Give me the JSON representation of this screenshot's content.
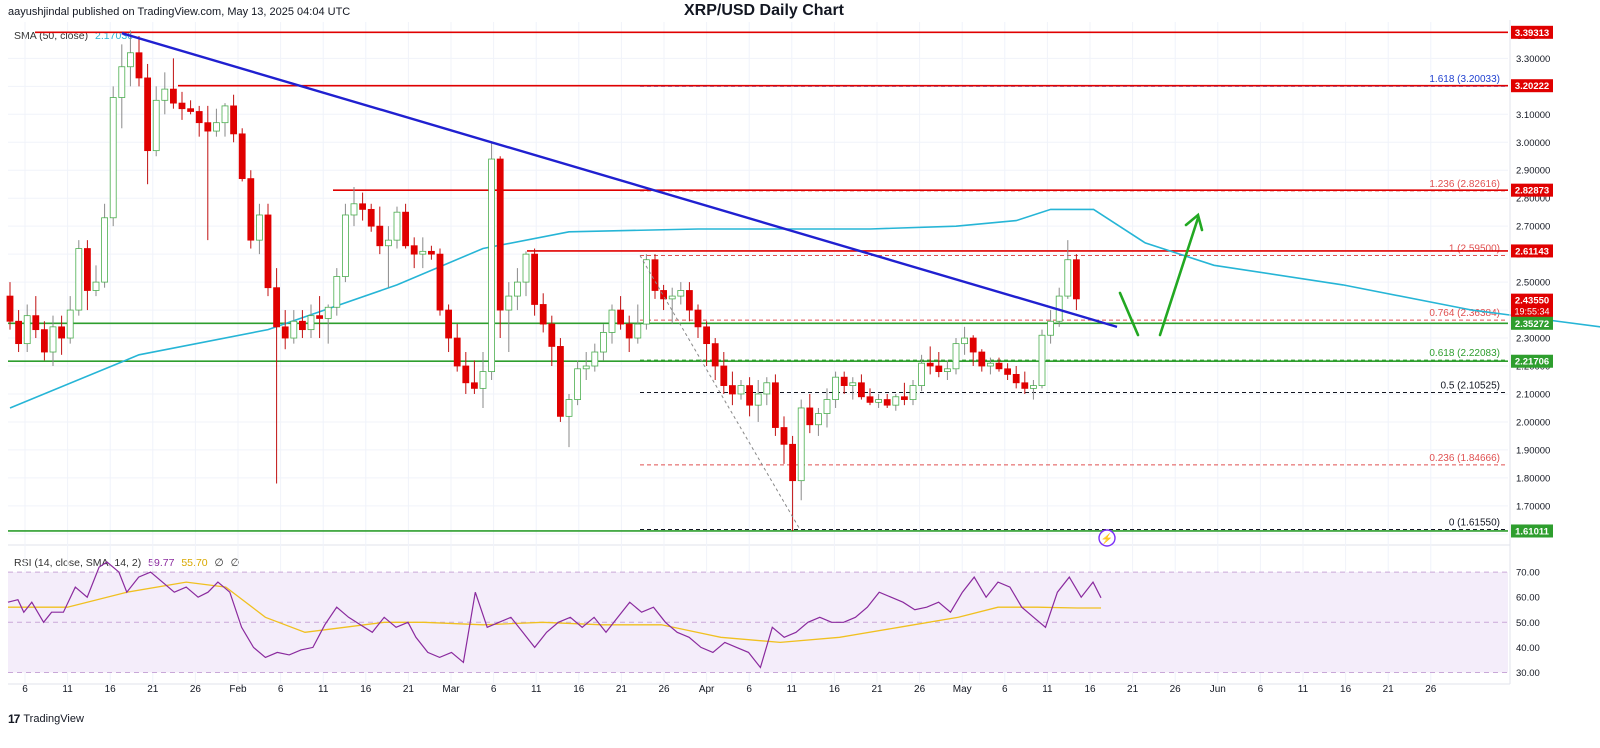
{
  "header": {
    "published": "aayushjindal published on TradingView.com, May 13, 2025 04:04 UTC",
    "title": "XRP/USD Daily Chart",
    "currency": "USD"
  },
  "indicators": {
    "sma_label": "SMA (50, close)",
    "sma_value": "2.17036",
    "rsi_label": "RSI (14, close, SMA, 14, 2)",
    "rsi_value": "59.77",
    "rsi_sma_value": "55.70",
    "rsi_extra1": "∅",
    "rsi_extra2": "∅"
  },
  "footer": {
    "brand": "TradingView",
    "logo": "17"
  },
  "colors": {
    "up": "#ffffff",
    "up_border": "#4caf50",
    "down": "#e00000",
    "sma": "#26b5d6",
    "trendline": "#2020d0",
    "resistance": "#e00000",
    "support": "#2e9e2e",
    "fib": "#e05050",
    "rsi": "#8a2a9e",
    "rsi_sma": "#f0c020",
    "arrow": "#22a822"
  },
  "chart_data": {
    "type": "candlestick",
    "title": "XRP/USD Daily Chart",
    "y_ticks": [
      "3.30000",
      "3.20000",
      "3.10000",
      "3.00000",
      "2.90000",
      "2.80000",
      "2.70000",
      "2.60000",
      "2.50000",
      "2.40000",
      "2.30000",
      "2.20000",
      "2.10000",
      "2.00000",
      "1.90000",
      "1.80000",
      "1.70000",
      "1.60000"
    ],
    "ylim": [
      1.56,
      3.43
    ],
    "x_ticks": [
      "6",
      "11",
      "16",
      "21",
      "26",
      "Feb",
      "6",
      "11",
      "16",
      "21",
      "Mar",
      "6",
      "11",
      "16",
      "21",
      "26",
      "Apr",
      "6",
      "11",
      "16",
      "21",
      "26",
      "May",
      "6",
      "11",
      "16",
      "21",
      "26",
      "Jun",
      "6",
      "11",
      "16",
      "21",
      "26"
    ],
    "price_labels": [
      {
        "value": 3.39313,
        "text": "3.39313",
        "color": "#e00000"
      },
      {
        "value": 3.20222,
        "text": "3.20222",
        "color": "#e00000"
      },
      {
        "value": 2.82873,
        "text": "2.82873",
        "color": "#e00000"
      },
      {
        "value": 2.61143,
        "text": "2.61143",
        "color": "#e00000"
      },
      {
        "value": 2.4355,
        "text": "2.43550",
        "sub": "19:55:34",
        "color": "#e00000"
      },
      {
        "value": 2.35272,
        "text": "2.35272",
        "color": "#2e9e2e"
      },
      {
        "value": 2.21706,
        "text": "2.21706",
        "color": "#2e9e2e"
      },
      {
        "value": 1.61011,
        "text": "1.61011",
        "color": "#2e9e2e"
      }
    ],
    "fib_levels": [
      {
        "ratio": "1.618",
        "price": "3.20033",
        "value": 3.20033,
        "color": "#1e3fd0",
        "label": "1.618 (3.20033)"
      },
      {
        "ratio": "1.236",
        "price": "2.82616",
        "value": 2.82616,
        "color": "#e05050",
        "label": "1.236 (2.82616)"
      },
      {
        "ratio": "1",
        "price": "2.59500",
        "value": 2.595,
        "color": "#e05050",
        "label": "1 (2.59500)"
      },
      {
        "ratio": "0.764",
        "price": "2.36384",
        "value": 2.36384,
        "color": "#e05050",
        "label": "0.764 (2.36384)"
      },
      {
        "ratio": "0.618",
        "price": "2.22083",
        "value": 2.22083,
        "color": "#2e9e2e",
        "label": "0.618 (2.22083)"
      },
      {
        "ratio": "0.5",
        "price": "2.10525",
        "value": 2.10525,
        "color": "#131722",
        "label": "0.5 (2.10525)"
      },
      {
        "ratio": "0.236",
        "price": "1.84666",
        "value": 1.84666,
        "color": "#e05050",
        "label": "0.236 (1.84666)"
      },
      {
        "ratio": "0",
        "price": "1.61550",
        "value": 1.6155,
        "color": "#131722",
        "label": "0 (1.61550)"
      }
    ],
    "candles": [
      [
        2.45,
        2.5,
        2.33,
        2.36
      ],
      [
        2.36,
        2.4,
        2.25,
        2.28
      ],
      [
        2.28,
        2.42,
        2.25,
        2.38
      ],
      [
        2.38,
        2.45,
        2.3,
        2.33
      ],
      [
        2.33,
        2.36,
        2.22,
        2.25
      ],
      [
        2.25,
        2.38,
        2.2,
        2.34
      ],
      [
        2.34,
        2.38,
        2.24,
        2.3
      ],
      [
        2.3,
        2.45,
        2.28,
        2.4
      ],
      [
        2.4,
        2.65,
        2.38,
        2.62
      ],
      [
        2.62,
        2.65,
        2.4,
        2.47
      ],
      [
        2.47,
        2.56,
        2.45,
        2.5
      ],
      [
        2.5,
        2.78,
        2.48,
        2.73
      ],
      [
        2.73,
        3.2,
        2.7,
        3.16
      ],
      [
        3.16,
        3.35,
        3.05,
        3.27
      ],
      [
        3.27,
        3.4,
        3.2,
        3.32
      ],
      [
        3.32,
        3.38,
        3.2,
        3.23
      ],
      [
        3.23,
        3.28,
        2.85,
        2.97
      ],
      [
        2.97,
        3.2,
        2.95,
        3.15
      ],
      [
        3.15,
        3.25,
        3.1,
        3.19
      ],
      [
        3.19,
        3.3,
        3.12,
        3.14
      ],
      [
        3.14,
        3.18,
        3.08,
        3.12
      ],
      [
        3.12,
        3.15,
        3.1,
        3.11
      ],
      [
        3.11,
        3.13,
        3.02,
        3.07
      ],
      [
        3.07,
        3.13,
        2.65,
        3.04
      ],
      [
        3.04,
        3.12,
        3.02,
        3.07
      ],
      [
        3.07,
        3.14,
        3.02,
        3.13
      ],
      [
        3.13,
        3.17,
        3.0,
        3.03
      ],
      [
        3.03,
        3.05,
        2.86,
        2.87
      ],
      [
        2.87,
        2.9,
        2.62,
        2.65
      ],
      [
        2.65,
        2.78,
        2.6,
        2.74
      ],
      [
        2.74,
        2.78,
        2.45,
        2.48
      ],
      [
        2.48,
        2.55,
        1.78,
        2.34
      ],
      [
        2.34,
        2.4,
        2.26,
        2.3
      ],
      [
        2.3,
        2.4,
        2.28,
        2.36
      ],
      [
        2.36,
        2.4,
        2.3,
        2.33
      ],
      [
        2.33,
        2.42,
        2.3,
        2.38
      ],
      [
        2.38,
        2.45,
        2.3,
        2.37
      ],
      [
        2.37,
        2.42,
        2.28,
        2.41
      ],
      [
        2.41,
        2.55,
        2.38,
        2.52
      ],
      [
        2.52,
        2.78,
        2.5,
        2.74
      ],
      [
        2.74,
        2.84,
        2.7,
        2.78
      ],
      [
        2.78,
        2.82,
        2.72,
        2.76
      ],
      [
        2.76,
        2.78,
        2.68,
        2.7
      ],
      [
        2.7,
        2.77,
        2.6,
        2.63
      ],
      [
        2.63,
        2.7,
        2.48,
        2.65
      ],
      [
        2.65,
        2.77,
        2.62,
        2.75
      ],
      [
        2.75,
        2.78,
        2.62,
        2.63
      ],
      [
        2.63,
        2.66,
        2.55,
        2.6
      ],
      [
        2.6,
        2.66,
        2.55,
        2.61
      ],
      [
        2.61,
        2.63,
        2.58,
        2.6
      ],
      [
        2.6,
        2.62,
        2.38,
        2.4
      ],
      [
        2.4,
        2.42,
        2.25,
        2.3
      ],
      [
        2.3,
        2.35,
        2.18,
        2.2
      ],
      [
        2.2,
        2.25,
        2.1,
        2.14
      ],
      [
        2.14,
        2.22,
        2.1,
        2.12
      ],
      [
        2.12,
        2.25,
        2.05,
        2.18
      ],
      [
        2.18,
        3.0,
        2.15,
        2.94
      ],
      [
        2.94,
        2.95,
        2.3,
        2.4
      ],
      [
        2.4,
        2.5,
        2.25,
        2.45
      ],
      [
        2.45,
        2.55,
        2.4,
        2.5
      ],
      [
        2.5,
        2.61,
        2.45,
        2.6
      ],
      [
        2.6,
        2.62,
        2.38,
        2.42
      ],
      [
        2.42,
        2.46,
        2.32,
        2.35
      ],
      [
        2.35,
        2.38,
        2.2,
        2.27
      ],
      [
        2.27,
        2.3,
        2.0,
        2.02
      ],
      [
        2.02,
        2.1,
        1.91,
        2.08
      ],
      [
        2.08,
        2.22,
        2.06,
        2.19
      ],
      [
        2.19,
        2.25,
        2.15,
        2.2
      ],
      [
        2.2,
        2.28,
        2.18,
        2.25
      ],
      [
        2.25,
        2.35,
        2.22,
        2.32
      ],
      [
        2.32,
        2.42,
        2.28,
        2.4
      ],
      [
        2.4,
        2.45,
        2.33,
        2.35
      ],
      [
        2.35,
        2.38,
        2.25,
        2.3
      ],
      [
        2.3,
        2.42,
        2.28,
        2.35
      ],
      [
        2.35,
        2.6,
        2.33,
        2.58
      ],
      [
        2.58,
        2.6,
        2.44,
        2.47
      ],
      [
        2.47,
        2.49,
        2.4,
        2.44
      ],
      [
        2.44,
        2.48,
        2.35,
        2.45
      ],
      [
        2.45,
        2.5,
        2.42,
        2.47
      ],
      [
        2.47,
        2.5,
        2.36,
        2.4
      ],
      [
        2.4,
        2.42,
        2.3,
        2.34
      ],
      [
        2.34,
        2.36,
        2.2,
        2.28
      ],
      [
        2.28,
        2.3,
        2.15,
        2.2
      ],
      [
        2.2,
        2.25,
        2.1,
        2.13
      ],
      [
        2.13,
        2.18,
        2.06,
        2.1
      ],
      [
        2.1,
        2.15,
        2.08,
        2.13
      ],
      [
        2.13,
        2.16,
        2.02,
        2.06
      ],
      [
        2.06,
        2.15,
        2.0,
        2.1
      ],
      [
        2.1,
        2.16,
        2.06,
        2.14
      ],
      [
        2.14,
        2.17,
        1.95,
        1.98
      ],
      [
        1.98,
        2.02,
        1.85,
        1.92
      ],
      [
        1.92,
        1.95,
        1.61,
        1.79
      ],
      [
        1.79,
        2.08,
        1.72,
        2.05
      ],
      [
        2.05,
        2.1,
        1.96,
        1.99
      ],
      [
        1.99,
        2.05,
        1.95,
        2.03
      ],
      [
        2.03,
        2.12,
        1.98,
        2.08
      ],
      [
        2.08,
        2.18,
        2.05,
        2.16
      ],
      [
        2.16,
        2.18,
        2.1,
        2.13
      ],
      [
        2.13,
        2.16,
        2.08,
        2.14
      ],
      [
        2.14,
        2.17,
        2.08,
        2.09
      ],
      [
        2.09,
        2.12,
        2.06,
        2.07
      ],
      [
        2.07,
        2.1,
        2.05,
        2.08
      ],
      [
        2.08,
        2.1,
        2.05,
        2.06
      ],
      [
        2.06,
        2.1,
        2.04,
        2.09
      ],
      [
        2.09,
        2.14,
        2.06,
        2.08
      ],
      [
        2.08,
        2.15,
        2.06,
        2.13
      ],
      [
        2.13,
        2.24,
        2.11,
        2.21
      ],
      [
        2.21,
        2.27,
        2.17,
        2.2
      ],
      [
        2.2,
        2.25,
        2.16,
        2.18
      ],
      [
        2.18,
        2.22,
        2.15,
        2.19
      ],
      [
        2.19,
        2.3,
        2.17,
        2.28
      ],
      [
        2.28,
        2.34,
        2.24,
        2.3
      ],
      [
        2.3,
        2.31,
        2.2,
        2.25
      ],
      [
        2.25,
        2.26,
        2.18,
        2.2
      ],
      [
        2.2,
        2.23,
        2.17,
        2.21
      ],
      [
        2.21,
        2.23,
        2.18,
        2.19
      ],
      [
        2.19,
        2.21,
        2.15,
        2.17
      ],
      [
        2.17,
        2.2,
        2.12,
        2.14
      ],
      [
        2.14,
        2.18,
        2.1,
        2.12
      ],
      [
        2.12,
        2.15,
        2.08,
        2.13
      ],
      [
        2.13,
        2.33,
        2.12,
        2.31
      ],
      [
        2.31,
        2.4,
        2.28,
        2.36
      ],
      [
        2.36,
        2.48,
        2.34,
        2.45
      ],
      [
        2.45,
        2.65,
        2.44,
        2.58
      ],
      [
        2.58,
        2.6,
        2.4,
        2.44
      ]
    ],
    "sma": [
      [
        0,
        2.05
      ],
      [
        15,
        2.24
      ],
      [
        30,
        2.33
      ],
      [
        45,
        2.49
      ],
      [
        55,
        2.62
      ],
      [
        65,
        2.68
      ],
      [
        80,
        2.69
      ],
      [
        100,
        2.69
      ],
      [
        110,
        2.7
      ],
      [
        117,
        2.72
      ],
      [
        121,
        2.76
      ],
      [
        126,
        2.76
      ],
      [
        132,
        2.64
      ],
      [
        140,
        2.56
      ],
      [
        155,
        2.49
      ],
      [
        170,
        2.4
      ],
      [
        185,
        2.34
      ],
      [
        200,
        2.26
      ],
      [
        220,
        2.23
      ],
      [
        240,
        2.21
      ],
      [
        260,
        2.19
      ],
      [
        275,
        2.18
      ],
      [
        290,
        2.17
      ],
      [
        300,
        2.17
      ]
    ],
    "rsi": {
      "ylim": [
        27,
        78
      ],
      "y_ticks": [
        "70.00",
        "60.00",
        "50.00",
        "40.00",
        "30.00"
      ],
      "series": [
        [
          0,
          58
        ],
        [
          5,
          59
        ],
        [
          8,
          54
        ],
        [
          12,
          58
        ],
        [
          18,
          50
        ],
        [
          22,
          54
        ],
        [
          28,
          54
        ],
        [
          34,
          64
        ],
        [
          40,
          60
        ],
        [
          46,
          72
        ],
        [
          50,
          74
        ],
        [
          56,
          70
        ],
        [
          60,
          62
        ],
        [
          66,
          68
        ],
        [
          72,
          70
        ],
        [
          78,
          66
        ],
        [
          84,
          62
        ],
        [
          90,
          64
        ],
        [
          96,
          60
        ],
        [
          101,
          62
        ],
        [
          106,
          66
        ],
        [
          112,
          62
        ],
        [
          118,
          48
        ],
        [
          124,
          40
        ],
        [
          130,
          36
        ],
        [
          136,
          38
        ],
        [
          142,
          37
        ],
        [
          148,
          39
        ],
        [
          154,
          40
        ],
        [
          160,
          49
        ],
        [
          166,
          56
        ],
        [
          172,
          52
        ],
        [
          178,
          49
        ],
        [
          184,
          46
        ],
        [
          190,
          52
        ],
        [
          196,
          48
        ],
        [
          202,
          50
        ],
        [
          206,
          44
        ],
        [
          212,
          38
        ],
        [
          218,
          36
        ],
        [
          224,
          38
        ],
        [
          230,
          34
        ],
        [
          236,
          62
        ],
        [
          242,
          48
        ],
        [
          248,
          50
        ],
        [
          254,
          52
        ],
        [
          260,
          46
        ],
        [
          266,
          40
        ],
        [
          272,
          46
        ],
        [
          278,
          50
        ],
        [
          284,
          52
        ],
        [
          290,
          48
        ],
        [
          296,
          52
        ],
        [
          302,
          46
        ],
        [
          308,
          52
        ],
        [
          314,
          58
        ],
        [
          320,
          54
        ],
        [
          326,
          56
        ],
        [
          332,
          50
        ],
        [
          338,
          46
        ],
        [
          344,
          44
        ],
        [
          350,
          40
        ],
        [
          356,
          38
        ],
        [
          362,
          42
        ],
        [
          368,
          40
        ],
        [
          374,
          38
        ],
        [
          380,
          32
        ],
        [
          386,
          48
        ],
        [
          392,
          44
        ],
        [
          398,
          46
        ],
        [
          404,
          50
        ],
        [
          410,
          52
        ],
        [
          416,
          50
        ],
        [
          422,
          50
        ],
        [
          428,
          52
        ],
        [
          434,
          56
        ],
        [
          440,
          62
        ],
        [
          446,
          60
        ],
        [
          452,
          58
        ],
        [
          458,
          55
        ],
        [
          464,
          56
        ],
        [
          470,
          58
        ],
        [
          476,
          54
        ],
        [
          482,
          62
        ],
        [
          488,
          68
        ],
        [
          494,
          60
        ],
        [
          500,
          66
        ],
        [
          506,
          64
        ],
        [
          512,
          56
        ],
        [
          518,
          52
        ],
        [
          524,
          48
        ],
        [
          530,
          62
        ],
        [
          536,
          68
        ],
        [
          542,
          60
        ],
        [
          548,
          66
        ],
        [
          552,
          59.77
        ]
      ],
      "sma_series": [
        [
          0,
          56
        ],
        [
          30,
          56
        ],
        [
          60,
          62
        ],
        [
          90,
          66
        ],
        [
          110,
          64
        ],
        [
          130,
          52
        ],
        [
          150,
          46
        ],
        [
          170,
          48
        ],
        [
          190,
          50
        ],
        [
          210,
          50
        ],
        [
          240,
          49
        ],
        [
          270,
          50
        ],
        [
          300,
          49
        ],
        [
          330,
          49
        ],
        [
          360,
          44
        ],
        [
          390,
          42
        ],
        [
          420,
          44
        ],
        [
          450,
          48
        ],
        [
          480,
          52
        ],
        [
          500,
          56
        ],
        [
          520,
          56
        ],
        [
          540,
          55.7
        ],
        [
          552,
          55.7
        ]
      ]
    }
  }
}
